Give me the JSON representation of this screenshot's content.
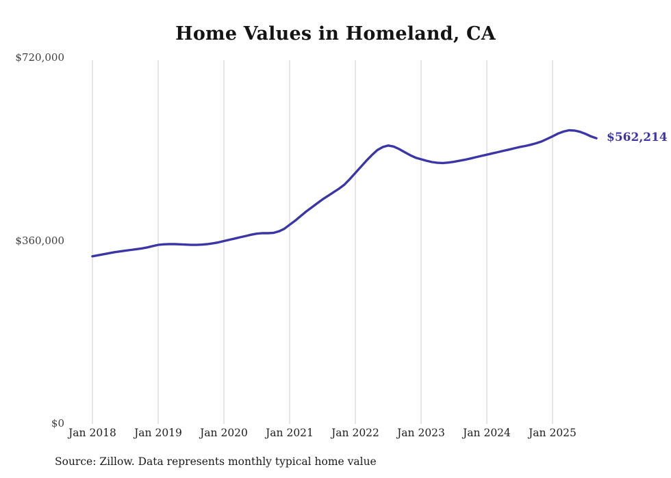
{
  "title": "Home Values in Homeland, CA",
  "end_label": "$562,214",
  "source_note": "Source: Zillow. Data represents monthly typical home value",
  "colors": {
    "line": "#3b35a7",
    "end_label": "#3b35a7",
    "gridline": "#cccccc",
    "title_text": "#141414",
    "axis_text": "#3d3d3d"
  },
  "chart_data": {
    "type": "line",
    "title": "Home Values in Homeland, CA",
    "frequency": "monthly",
    "x_start": "Jan 2018",
    "x_end": "Sep 2025",
    "x_tick_labels": [
      "Jan 2018",
      "Jan 2019",
      "Jan 2020",
      "Jan 2021",
      "Jan 2022",
      "Jan 2023",
      "Jan 2024",
      "Jan 2025"
    ],
    "y_tick_labels": [
      "$0",
      "$360,000",
      "$720,000"
    ],
    "y_ticks": [
      0,
      360000,
      720000
    ],
    "ylim": [
      0,
      720000
    ],
    "grid": "vertical-only",
    "legend": false,
    "end_value": 562214,
    "series": [
      {
        "name": "Typical home value",
        "monthly_values": [
          330000,
          332000,
          334000,
          336000,
          338000,
          339500,
          341000,
          342500,
          344000,
          345500,
          347500,
          350000,
          352500,
          353500,
          354000,
          354000,
          353500,
          353000,
          352500,
          352500,
          353000,
          354000,
          355500,
          357500,
          360000,
          362500,
          365000,
          367500,
          370000,
          372500,
          374500,
          375500,
          375500,
          376000,
          379000,
          384000,
          392000,
          400000,
          409000,
          418000,
          426000,
          434000,
          442000,
          449000,
          456000,
          463000,
          471000,
          482000,
          494000,
          506000,
          518000,
          529000,
          539000,
          545000,
          548000,
          546000,
          541000,
          535000,
          529000,
          524000,
          521000,
          518000,
          515500,
          514000,
          513500,
          514500,
          516000,
          518000,
          520000,
          522500,
          525000,
          527500,
          530000,
          532500,
          535000,
          537500,
          540000,
          542500,
          545000,
          547000,
          549500,
          552500,
          556000,
          561000,
          566000,
          571500,
          575500,
          578000,
          577500,
          575000,
          571000,
          566000,
          562214
        ]
      }
    ]
  }
}
